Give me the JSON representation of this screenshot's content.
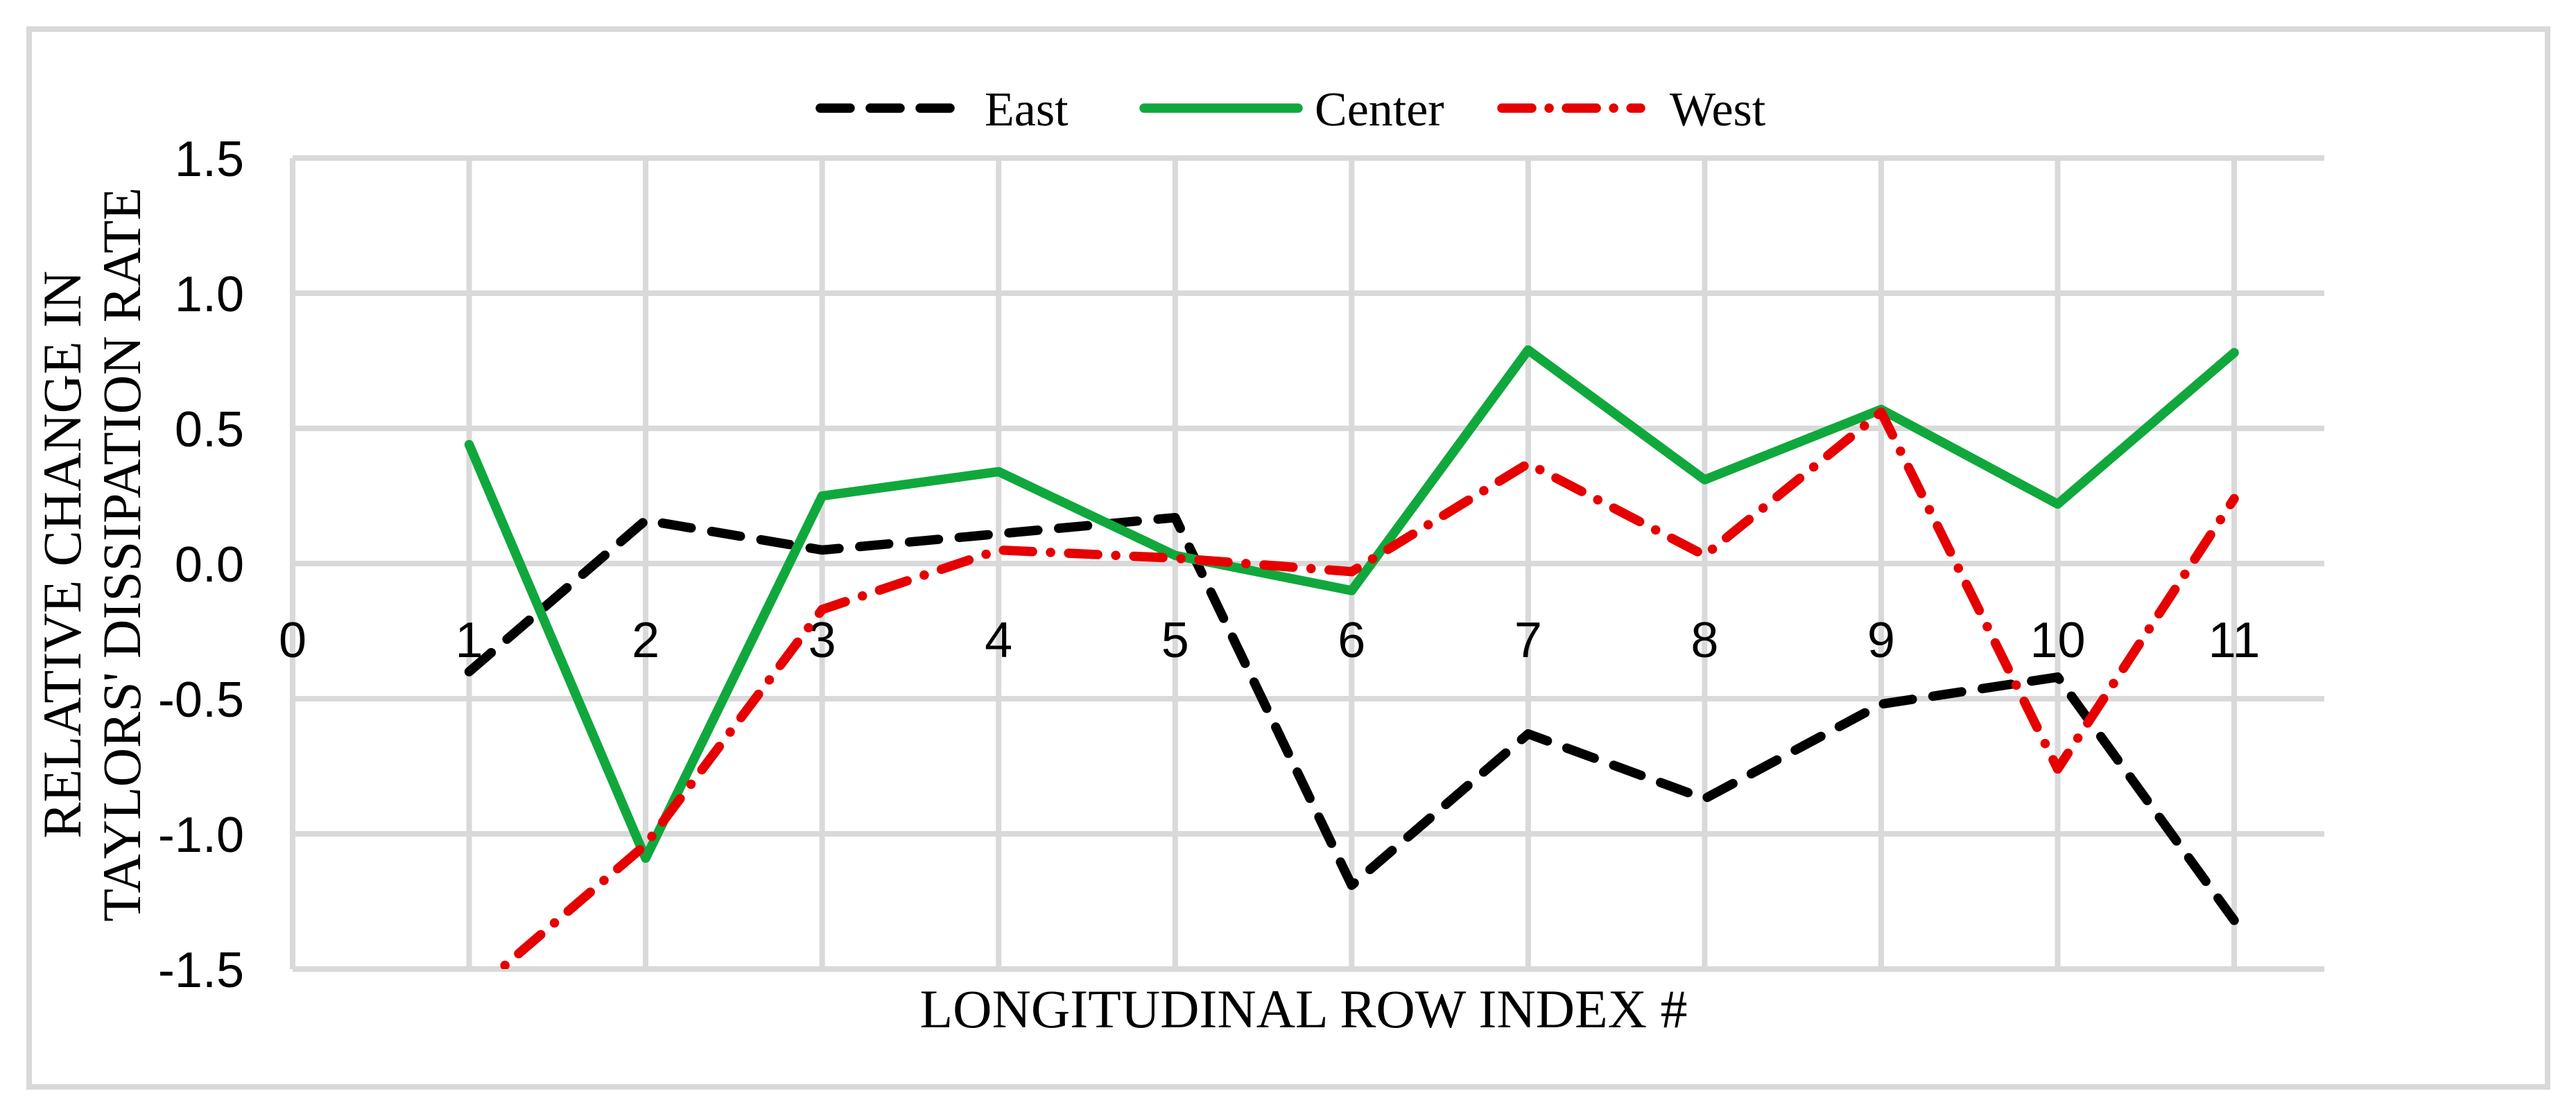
{
  "figure": {
    "background": "#FFFFFF",
    "border_color": "#D9D9D9",
    "gridline_color": "#D9D9D9",
    "text_color": "#000000"
  },
  "legend": [
    {
      "label": "East",
      "color": "#000000",
      "style": "dashed"
    },
    {
      "label": "Center",
      "color": "#10A83C",
      "style": "solid"
    },
    {
      "label": "West",
      "color": "#E60000",
      "style": "dashdot"
    }
  ],
  "chart_data": {
    "type": "line",
    "title": "",
    "xlabel": "LONGITUDINAL ROW INDEX #",
    "ylabel_line1": "RELATIVE CHANGE IN",
    "ylabel_line2": "TAYLORS' DISSIPATION RATE",
    "x": [
      1,
      2,
      3,
      4,
      5,
      6,
      7,
      8,
      9,
      10,
      11
    ],
    "x_tick_labels": [
      "0",
      "1",
      "2",
      "3",
      "4",
      "5",
      "6",
      "7",
      "8",
      "9",
      "10",
      "11"
    ],
    "x_tick_values": [
      0,
      1,
      2,
      3,
      4,
      5,
      6,
      7,
      8,
      9,
      10,
      11
    ],
    "y_tick_labels": [
      "1.5",
      "1.0",
      "0.5",
      "0.0",
      "-0.5",
      "-1.0",
      "-1.5"
    ],
    "y_tick_values": [
      1.5,
      1.0,
      0.5,
      0.0,
      -0.5,
      -1.0,
      -1.5
    ],
    "ylim": [
      -1.5,
      1.5
    ],
    "grid": true,
    "legend_position": "top",
    "series": [
      {
        "name": "East",
        "color": "#000000",
        "style": "dashed",
        "values": [
          -0.4,
          0.16,
          0.05,
          0.11,
          0.17,
          -1.19,
          -0.63,
          -0.87,
          -0.52,
          -0.42,
          -1.32
        ]
      },
      {
        "name": "Center",
        "color": "#10A83C",
        "style": "solid",
        "values": [
          0.44,
          -1.09,
          0.25,
          0.34,
          0.03,
          -0.1,
          0.79,
          0.31,
          0.57,
          0.22,
          0.78
        ]
      },
      {
        "name": "West",
        "color": "#E60000",
        "style": "dashdot",
        "values": [
          -1.6,
          -1.04,
          -0.17,
          0.05,
          0.02,
          -0.03,
          0.37,
          0.03,
          0.56,
          -0.76,
          0.24
        ]
      }
    ]
  }
}
